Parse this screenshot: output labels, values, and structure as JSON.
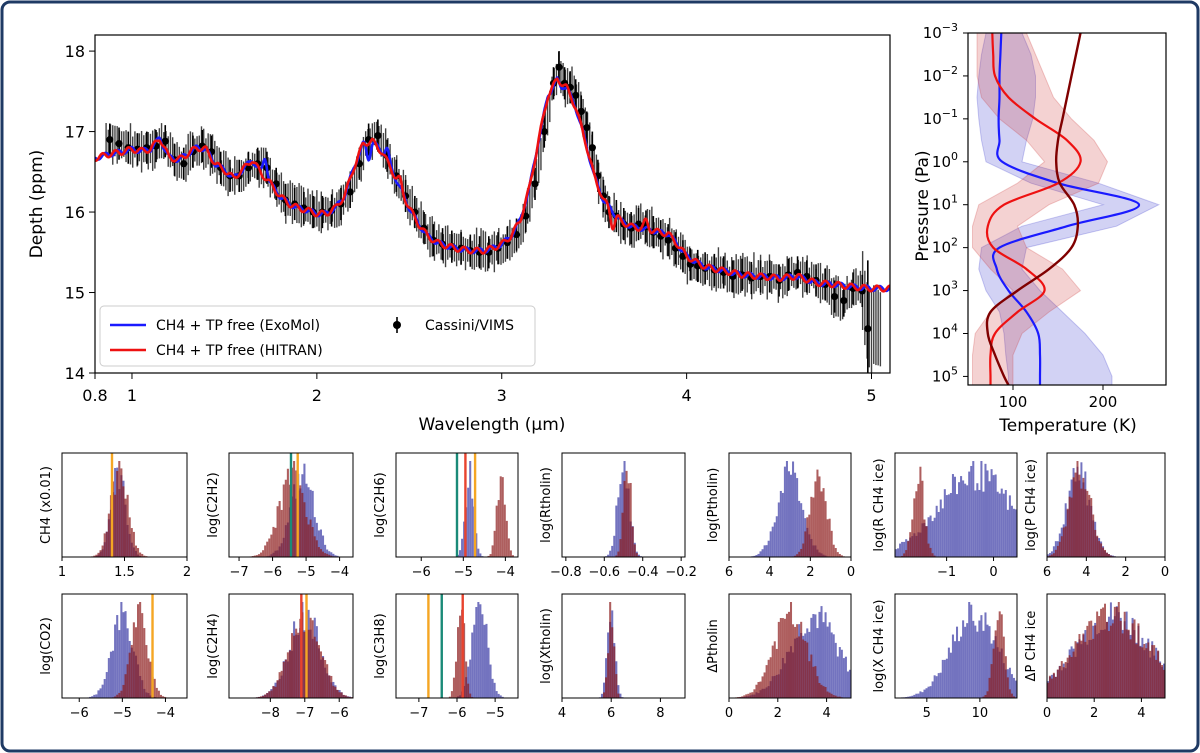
{
  "chart_data": {
    "type": "figure",
    "spectrum": {
      "type": "line",
      "xlabel": "Wavelength (μm)",
      "ylabel": "Depth (ppm)",
      "xlim": [
        0.8,
        5.1
      ],
      "ylim": [
        14,
        18.2
      ],
      "xticks": [
        0.8,
        1,
        2,
        3,
        4,
        5
      ],
      "xtick_labels": [
        "0.8",
        "1",
        "2",
        "3",
        "4",
        "5"
      ],
      "yticks": [
        14,
        15,
        16,
        17,
        18
      ],
      "ytick_labels": [
        "14",
        "15",
        "16",
        "17",
        "18"
      ],
      "legend": {
        "placement": "lower-left",
        "model_blue": "CH4 + TP free (ExoMol)",
        "model_red": "CH4 + TP free (HITRAN)",
        "obs": "Cassini/VIMS"
      },
      "series_model": {
        "x": [
          0.8,
          0.88,
          0.95,
          1.0,
          1.05,
          1.1,
          1.15,
          1.2,
          1.25,
          1.3,
          1.35,
          1.4,
          1.45,
          1.5,
          1.55,
          1.6,
          1.65,
          1.7,
          1.75,
          1.8,
          1.85,
          1.9,
          1.95,
          2.0,
          2.05,
          2.1,
          2.15,
          2.2,
          2.25,
          2.3,
          2.35,
          2.4,
          2.45,
          2.5,
          2.55,
          2.6,
          2.65,
          2.7,
          2.75,
          2.8,
          2.85,
          2.9,
          2.95,
          3.0,
          3.05,
          3.1,
          3.15,
          3.2,
          3.25,
          3.3,
          3.35,
          3.4,
          3.45,
          3.5,
          3.55,
          3.6,
          3.65,
          3.7,
          3.75,
          3.8,
          3.85,
          3.9,
          3.95,
          4.0,
          4.05,
          4.1,
          4.2,
          4.3,
          4.4,
          4.5,
          4.6,
          4.7,
          4.8,
          4.9,
          5.0,
          5.1
        ],
        "y": [
          16.67,
          16.72,
          16.75,
          16.78,
          16.76,
          16.78,
          16.92,
          16.68,
          16.65,
          16.72,
          16.8,
          16.78,
          16.6,
          16.52,
          16.42,
          16.53,
          16.65,
          16.48,
          16.35,
          16.2,
          16.1,
          16.05,
          16.02,
          15.98,
          15.98,
          16.05,
          16.2,
          16.55,
          16.85,
          16.88,
          16.75,
          16.55,
          16.3,
          16.05,
          15.85,
          15.7,
          15.62,
          15.58,
          15.55,
          15.53,
          15.52,
          15.52,
          15.55,
          15.6,
          15.7,
          15.9,
          16.3,
          16.9,
          17.45,
          17.65,
          17.55,
          17.3,
          16.9,
          16.45,
          16.15,
          16.0,
          15.88,
          15.82,
          15.8,
          15.78,
          15.75,
          15.73,
          15.6,
          15.45,
          15.38,
          15.32,
          15.27,
          15.22,
          15.2,
          15.18,
          15.2,
          15.12,
          15.1,
          15.07,
          15.05,
          15.05
        ],
        "blue_features": [
          {
            "x": 1.72,
            "dy": 0.25
          },
          {
            "x": 2.28,
            "dy": -0.2
          },
          {
            "x": 2.38,
            "dy": 0.15
          },
          {
            "x": 3.32,
            "dy": -0.05
          }
        ],
        "red_features": [
          {
            "x": 3.6,
            "dy": -0.18
          },
          {
            "x": 2.45,
            "dy": 0.1
          },
          {
            "x": 3.78,
            "dy": 0.1
          }
        ]
      },
      "series_obs": {
        "x": [
          0.88,
          0.93,
          0.98,
          1.03,
          1.08,
          1.13,
          1.18,
          1.23,
          1.28,
          1.33,
          1.38,
          1.43,
          1.48,
          1.53,
          1.58,
          1.63,
          1.68,
          1.73,
          1.78,
          1.83,
          1.88,
          1.93,
          1.98,
          2.03,
          2.08,
          2.13,
          2.18,
          2.23,
          2.28,
          2.33,
          2.38,
          2.43,
          2.48,
          2.53,
          2.58,
          2.63,
          2.68,
          2.73,
          2.78,
          2.83,
          2.88,
          2.93,
          2.98,
          3.03,
          3.08,
          3.13,
          3.18,
          3.23,
          3.28,
          3.31,
          3.34,
          3.37,
          3.4,
          3.43,
          3.46,
          3.49,
          3.52,
          3.55,
          3.58,
          3.62,
          3.66,
          3.7,
          3.74,
          3.78,
          3.82,
          3.86,
          3.9,
          3.94,
          3.98,
          4.02,
          4.06,
          4.1,
          4.15,
          4.2,
          4.25,
          4.3,
          4.35,
          4.4,
          4.45,
          4.5,
          4.55,
          4.6,
          4.65,
          4.7,
          4.75,
          4.8,
          4.85,
          4.9,
          4.95,
          4.98
        ],
        "y": [
          16.9,
          16.85,
          16.8,
          16.78,
          16.8,
          16.82,
          16.88,
          16.65,
          16.6,
          16.75,
          16.82,
          16.75,
          16.55,
          16.45,
          16.45,
          16.55,
          16.6,
          16.55,
          16.35,
          16.15,
          16.1,
          16.05,
          16.0,
          16.0,
          16.02,
          16.1,
          16.25,
          16.6,
          16.9,
          16.95,
          16.7,
          16.45,
          16.2,
          16.0,
          15.8,
          15.65,
          15.6,
          15.57,
          15.55,
          15.52,
          15.5,
          15.5,
          15.55,
          15.62,
          15.72,
          15.95,
          16.35,
          17.0,
          17.6,
          17.8,
          17.6,
          17.55,
          17.45,
          17.25,
          17.05,
          16.8,
          16.45,
          16.2,
          16.0,
          15.95,
          15.85,
          15.8,
          15.85,
          15.82,
          15.75,
          15.7,
          15.65,
          15.55,
          15.45,
          15.35,
          15.33,
          15.3,
          15.28,
          15.25,
          15.2,
          15.22,
          15.18,
          15.2,
          15.2,
          15.15,
          15.22,
          15.25,
          15.2,
          15.15,
          15.1,
          14.95,
          14.9,
          15.05,
          15.02,
          14.55
        ],
        "err": 0.2
      }
    },
    "tp_profile": {
      "type": "line",
      "xlabel": "Temperature (K)",
      "ylabel": "Pressure (Pa)",
      "xlim": [
        50,
        270
      ],
      "ylim_log10": [
        -3,
        5.2
      ],
      "xticks": [
        100,
        200
      ],
      "xtick_labels": [
        "100",
        "200"
      ],
      "ytick_labels": [
        "10^-3",
        "10^-2",
        "10^-1",
        "10^0",
        "10^1",
        "10^2",
        "10^3",
        "10^4",
        "10^5"
      ],
      "log10P": [
        -3,
        -2.5,
        -2,
        -1.5,
        -1,
        -0.5,
        0,
        0.5,
        1,
        1.5,
        2,
        2.5,
        3,
        3.5,
        4,
        4.5,
        5,
        5.2
      ],
      "blue_T": [
        87,
        86,
        85,
        85,
        84,
        85,
        88,
        150,
        240,
        160,
        85,
        82,
        95,
        115,
        128,
        130,
        130,
        130
      ],
      "blue_lo": [
        70,
        65,
        62,
        60,
        62,
        65,
        70,
        120,
        200,
        110,
        65,
        62,
        70,
        85,
        90,
        92,
        95,
        95
      ],
      "blue_hi": [
        110,
        120,
        125,
        125,
        122,
        115,
        110,
        195,
        262,
        215,
        115,
        110,
        130,
        155,
        180,
        200,
        210,
        210
      ],
      "red_T": [
        77,
        78,
        80,
        95,
        125,
        160,
        175,
        150,
        90,
        72,
        78,
        115,
        135,
        105,
        80,
        75,
        75,
        75
      ],
      "red_lo": [
        60,
        60,
        60,
        65,
        85,
        115,
        135,
        105,
        62,
        55,
        55,
        75,
        100,
        75,
        58,
        55,
        55,
        55
      ],
      "red_hi": [
        115,
        125,
        135,
        145,
        165,
        190,
        205,
        195,
        140,
        105,
        115,
        155,
        175,
        140,
        110,
        100,
        100,
        100
      ],
      "darkred_T": [
        175,
        170,
        165,
        160,
        155,
        150,
        148,
        152,
        168,
        172,
        165,
        140,
        105,
        75,
        72,
        80,
        90,
        95
      ]
    },
    "histograms": [
      {
        "label": "CH4 (x0.01)",
        "xticks": [
          "1",
          "1.5",
          "2"
        ],
        "tickv": [
          1,
          1.5,
          2
        ],
        "xlim": [
          1,
          2
        ],
        "blue": [
          1.45,
          0.06
        ],
        "red": [
          1.46,
          0.07
        ],
        "vlines": [
          {
            "x": 1.4,
            "c": "#f5a623"
          }
        ]
      },
      {
        "label": "log(C2H2)",
        "xticks": [
          "−7",
          "−6",
          "−5",
          "−4"
        ],
        "tickv": [
          -7,
          -6,
          -5,
          -4
        ],
        "xlim": [
          -7.3,
          -3.6
        ],
        "blue": [
          -5.1,
          0.35
        ],
        "red": [
          -5.4,
          0.4
        ],
        "vlines": [
          {
            "x": -5.45,
            "c": "#1a8a78"
          },
          {
            "x": -5.25,
            "c": "#f5a623"
          }
        ]
      },
      {
        "label": "log(C2H6)",
        "xticks": [
          "−6",
          "−5",
          "−4"
        ],
        "tickv": [
          -6,
          -5,
          -4
        ],
        "xlim": [
          -6.6,
          -3.7
        ],
        "blue": [
          -4.85,
          0.1
        ],
        "red": [
          -4.1,
          0.1
        ],
        "vlines": [
          {
            "x": -5.15,
            "c": "#1a8a78"
          },
          {
            "x": -4.95,
            "c": "#e8432e"
          },
          {
            "x": -4.72,
            "c": "#f5a623"
          }
        ]
      },
      {
        "label": "log(Rtholin)",
        "xticks": [
          "−0.8",
          "−0.6",
          "−0.4",
          "−0.2"
        ],
        "tickv": [
          -0.8,
          -0.6,
          -0.4,
          -0.2
        ],
        "xlim": [
          -0.82,
          -0.18
        ],
        "blue": [
          -0.5,
          0.03
        ],
        "red": [
          -0.48,
          0.02
        ],
        "vlines": []
      },
      {
        "label": "log(Ptholin)",
        "xticks": [
          "6",
          "4",
          "2",
          "0"
        ],
        "tickv": [
          6,
          4,
          2,
          0
        ],
        "xlim": [
          6,
          0
        ],
        "inverted": true,
        "blue": [
          3.0,
          0.6
        ],
        "red": [
          1.6,
          0.4
        ],
        "vlines": []
      },
      {
        "label": "log(R CH4 ice)",
        "xticks": [
          "−1",
          "0"
        ],
        "tickv": [
          -1,
          0
        ],
        "xlim": [
          -2.1,
          0.5
        ],
        "blue": [
          -0.4,
          0.8
        ],
        "red": [
          -1.6,
          0.12
        ],
        "vlines": []
      },
      {
        "label": "log(P CH4 ice)",
        "xticks": [
          "6",
          "4",
          "2",
          "0"
        ],
        "tickv": [
          6,
          4,
          2,
          0
        ],
        "xlim": [
          6,
          0
        ],
        "inverted": true,
        "blue": [
          4.4,
          0.6
        ],
        "red": [
          4.3,
          0.55
        ],
        "vlines": []
      },
      {
        "label": "log(CO2)",
        "xticks": [
          "−6",
          "−5",
          "−4"
        ],
        "tickv": [
          -6,
          -5,
          -4
        ],
        "xlim": [
          -6.4,
          -3.5
        ],
        "blue": [
          -5.0,
          0.25
        ],
        "red": [
          -4.6,
          0.2
        ],
        "vlines": [
          {
            "x": -4.3,
            "c": "#f5a623"
          }
        ]
      },
      {
        "label": "log(C2H4)",
        "xticks": [
          "−8",
          "−7",
          "−6"
        ],
        "tickv": [
          -8,
          -7,
          -6
        ],
        "xlim": [
          -9.2,
          -5.6
        ],
        "blue": [
          -7.0,
          0.45
        ],
        "red": [
          -7.0,
          0.45
        ],
        "vlines": [
          {
            "x": -7.1,
            "c": "#e8432e"
          },
          {
            "x": -6.95,
            "c": "#f5a623"
          }
        ]
      },
      {
        "label": "log(C3H8)",
        "xticks": [
          "−7",
          "−6",
          "−5"
        ],
        "tickv": [
          -7,
          -6,
          -5
        ],
        "xlim": [
          -7.6,
          -4.4
        ],
        "blue": [
          -5.4,
          0.2
        ],
        "red": [
          -5.9,
          0.1
        ],
        "vlines": [
          {
            "x": -6.75,
            "c": "#f5a623"
          },
          {
            "x": -6.4,
            "c": "#1a8a78"
          },
          {
            "x": -5.85,
            "c": "#e8432e"
          }
        ]
      },
      {
        "label": "log(Xtholin)",
        "xticks": [
          "4",
          "6",
          "8"
        ],
        "tickv": [
          4,
          6,
          8
        ],
        "xlim": [
          4,
          9
        ],
        "blue": [
          6.0,
          0.15
        ],
        "red": [
          6.0,
          0.12
        ],
        "vlines": []
      },
      {
        "label": "ΔPtholin",
        "xticks": [
          "0",
          "2",
          "4"
        ],
        "tickv": [
          0,
          2,
          4
        ],
        "xlim": [
          0,
          5
        ],
        "blue": [
          3.5,
          1.0
        ],
        "red": [
          2.5,
          0.7
        ],
        "vlines": []
      },
      {
        "label": "log(X CH4 ice)",
        "xticks": [
          "5",
          "10"
        ],
        "tickv": [
          5,
          10
        ],
        "xlim": [
          2,
          13.5
        ],
        "blue": [
          9.5,
          2.2
        ],
        "red": [
          11.8,
          0.5
        ],
        "vlines": []
      },
      {
        "label": "ΔP CH4 ice",
        "xticks": [
          "0",
          "2",
          "4"
        ],
        "tickv": [
          0,
          2,
          4
        ],
        "xlim": [
          0,
          5
        ],
        "blue": [
          2.8,
          1.6
        ],
        "red": [
          2.8,
          1.6
        ],
        "vlines": []
      }
    ]
  }
}
